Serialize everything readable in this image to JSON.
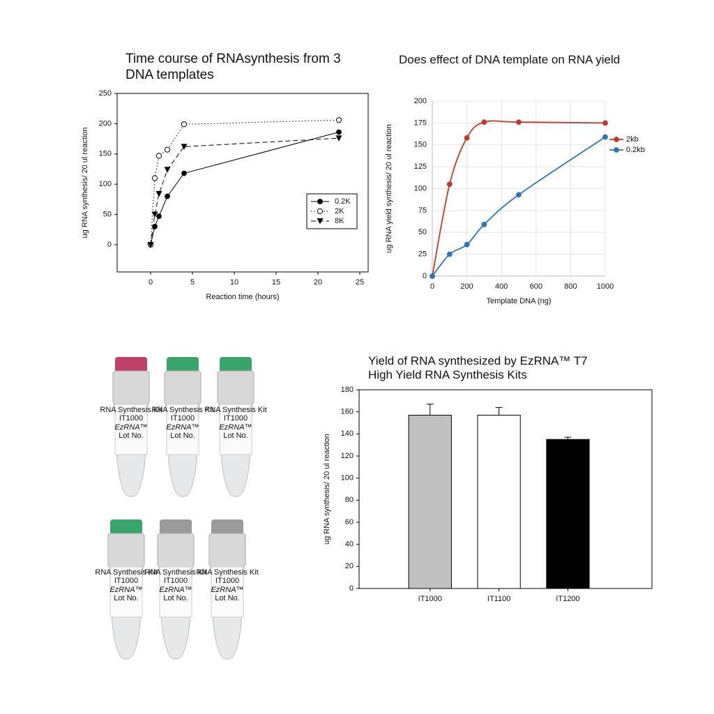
{
  "chart_data": [
    {
      "type": "line",
      "title": "Time course of RNAsynthesis from 3 DNA templates",
      "xlabel": "Reaction time (hours)",
      "ylabel": "ug RNA synthesis/ 20 ul reaction",
      "x": [
        0,
        0.5,
        1,
        2,
        4,
        22.5
      ],
      "series": [
        {
          "name": "0.2K",
          "color": "#000000",
          "marker": "filled-circle",
          "dash": "solid",
          "values": [
            0,
            30,
            47,
            80,
            118,
            186
          ]
        },
        {
          "name": "2K",
          "color": "#000000",
          "marker": "open-circle",
          "dash": "dotted",
          "values": [
            0,
            110,
            147,
            157,
            199,
            206
          ]
        },
        {
          "name": "8K",
          "color": "#000000",
          "marker": "triangle",
          "dash": "dashed",
          "values": [
            0,
            50,
            84,
            124,
            162,
            176
          ]
        }
      ],
      "xlim": [
        -4,
        26
      ],
      "ylim": [
        -45,
        250
      ],
      "xticks": [
        0,
        5,
        10,
        15,
        20,
        25
      ],
      "yticks": [
        0,
        50,
        100,
        150,
        200,
        250
      ],
      "grid": false,
      "legend": "lower right"
    },
    {
      "type": "line",
      "title": "Does effect of DNA template on RNA yield",
      "xlabel": "Template DNA (ng)",
      "ylabel": "ug RNA yield synthesis/ 20 ul reaction",
      "x": [
        0,
        100,
        200,
        300,
        500,
        1000
      ],
      "series": [
        {
          "name": "2kb",
          "color": "#c0392b",
          "marker": "filled-circle",
          "dash": "solid",
          "values": [
            0,
            105,
            158,
            176,
            176,
            175
          ]
        },
        {
          "name": "0.2kb",
          "color": "#2e75b6",
          "marker": "filled-circle",
          "dash": "solid",
          "values": [
            0,
            25,
            36,
            59,
            93,
            159
          ]
        }
      ],
      "xlim": [
        0,
        1000
      ],
      "ylim": [
        0,
        200
      ],
      "xticks": [
        0,
        200,
        400,
        600,
        800,
        1000
      ],
      "yticks": [
        0,
        25,
        50,
        75,
        100,
        125,
        150,
        175,
        200
      ],
      "grid": true,
      "smooth": true,
      "legend": "right"
    },
    {
      "type": "bar",
      "title": "Yield of RNA synthesized by EzRNA™ T7 High Yield RNA Synthesis Kits",
      "ylabel": "ug RNA synthesis/ 20 ul reaction",
      "categories": [
        "IT1000",
        "IT1100",
        "IT1200"
      ],
      "values": [
        157,
        157,
        135
      ],
      "errors": [
        10,
        7,
        2
      ],
      "colors": [
        "#c0c0c0",
        "#ffffff",
        "#000000"
      ],
      "ylim": [
        0,
        180
      ],
      "yticks": [
        0,
        20,
        40,
        60,
        80,
        100,
        120,
        140,
        160,
        180
      ],
      "grid": false
    }
  ],
  "photo": {
    "kit_text": "RNA Synthesis Kit",
    "lot_text": "Lot No.",
    "tubes": [
      {
        "label": "IT1000",
        "brand": "EzRNA™"
      },
      {
        "label": "IT1000",
        "brand": "EzRNA™"
      },
      {
        "label": "IT1000",
        "brand": "EzRNA™"
      },
      {
        "label": "IT1000",
        "brand": "EzRNA™"
      },
      {
        "label": "IT1000",
        "brand": "EzRNA™"
      },
      {
        "label": "IT1000",
        "brand": "EzRNA™"
      }
    ]
  }
}
